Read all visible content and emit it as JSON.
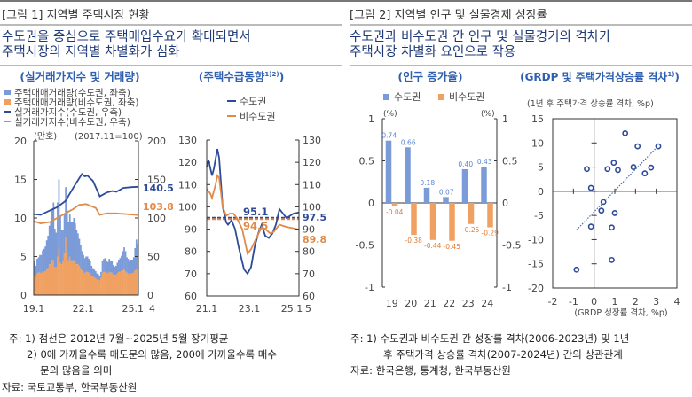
{
  "figure1": {
    "title": "[그림 1] 지역별 주택시장 현황",
    "subtitle_lines": [
      "수도권을 중심으로 주택매입수요가 확대되면서",
      "주택시장의 지역별 차별화가 심화"
    ],
    "notes": [
      "주: 1) 점선은 2012년 7월~2025년 5월 장기평균",
      "2) 0에 가까울수록 매도문의 많음, 200에 가까울수록 매수",
      "문의 많음을 의미"
    ],
    "source": "자료: 국토교통부, 한국부동산원"
  },
  "figure2": {
    "title": "[그림 2] 지역별 인구 및 실물경제 성장률",
    "subtitle_lines": [
      "수도권과 비수도권 간 인구 및 실물경기의 격차가",
      "주택시장 차별화 요인으로 작용"
    ],
    "notes": [
      "주: 1) 수도권과 비수도권 간 성장률 격차(2006-2023년) 및 1년",
      "후 주택가격 상승률 격차(2007-2024년) 간의 상관관계"
    ],
    "source": "자료: 한국은행, 통계청, 한국부동산원"
  },
  "colors": {
    "metro_line": "#2e4a9a",
    "nonmetro_line": "#e08a4a",
    "metro_bar": "#7b9bd8",
    "nonmetro_bar": "#f0a060",
    "subtitle": "#1f3a78",
    "chart_title": "#2f5fb0"
  },
  "chart_data": [
    {
      "type": "bar+line",
      "title": "(실거래가지수 및 거래량)",
      "left_unit": "(만호)",
      "right_unit": "(2017.11=100)",
      "left_ylim": [
        0,
        20
      ],
      "left_ticks": [
        "0",
        "5",
        "10",
        "15",
        "20"
      ],
      "right_ylim": [
        0,
        200
      ],
      "right_ticks": [
        "0",
        "50",
        "100",
        "150",
        "200"
      ],
      "x_range": [
        "2019.1",
        "2025.5"
      ],
      "x_ticks": [
        "19.1",
        "22.1",
        "25.1"
      ],
      "x_tail": "4",
      "legend": [
        "주택매매거래량(수도권, 좌축)",
        "주택매매거래량(비수도권, 좌축)",
        "실거래가지수(수도권, 우축)",
        "실거래가지수(비수도권, 우축)"
      ],
      "bars_stacked": true,
      "bar_series": [
        {
          "name": "주택매매거래량(비수도권, 좌축)",
          "values": [
            2.6,
            2.3,
            2.8,
            2.9,
            2.9,
            2.8,
            3.0,
            3.0,
            3.1,
            3.3,
            3.5,
            4.0,
            4.0,
            4.6,
            4.5,
            3.6,
            3.6,
            5.0,
            6.0,
            4.2,
            4.0,
            4.4,
            5.5,
            7.5,
            5.5,
            4.5,
            5.0,
            4.5,
            4.5,
            4.5,
            4.3,
            4.0,
            4.0,
            3.8,
            3.5,
            3.2,
            3.0,
            2.8,
            3.0,
            3.0,
            2.9,
            2.8,
            2.5,
            2.4,
            2.3,
            2.2,
            2.0,
            2.0,
            1.9,
            2.2,
            2.9,
            3.0,
            3.0,
            2.9,
            2.8,
            3.0,
            2.9,
            2.9,
            2.7,
            2.6,
            2.6,
            2.8,
            3.0,
            3.0,
            3.1,
            3.2,
            3.3,
            3.1,
            2.9,
            2.8,
            2.7,
            2.8,
            2.8,
            2.9,
            3.2,
            3.4,
            3.2
          ]
        },
        {
          "name": "주택매매거래량(수도권, 좌축)",
          "values": [
            1.8,
            1.5,
            1.9,
            2.0,
            2.3,
            2.4,
            2.8,
            3.0,
            3.2,
            3.8,
            4.2,
            5.0,
            5.5,
            6.5,
            7.5,
            5.0,
            4.5,
            7.0,
            9.0,
            6.0,
            4.5,
            4.0,
            5.0,
            6.5,
            5.5,
            5.0,
            5.5,
            5.0,
            5.0,
            5.5,
            5.0,
            4.5,
            4.0,
            3.5,
            3.0,
            2.5,
            2.2,
            2.0,
            2.0,
            2.0,
            1.8,
            1.6,
            1.3,
            1.1,
            1.0,
            0.9,
            0.8,
            0.7,
            0.6,
            0.8,
            1.6,
            1.7,
            1.8,
            1.6,
            1.5,
            1.7,
            1.6,
            1.5,
            1.2,
            1.1,
            1.2,
            1.4,
            1.6,
            1.8,
            2.0,
            2.5,
            2.9,
            2.6,
            2.0,
            1.9,
            1.7,
            1.8,
            1.8,
            2.0,
            2.9,
            3.8,
            3.5
          ]
        }
      ],
      "line_series": [
        {
          "name": "실거래가지수(수도권, 우축)",
          "end_label": "140.5",
          "points": [
            [
              "2019.1",
              105
            ],
            [
              "2019.6",
              104
            ],
            [
              "2020.1",
              110
            ],
            [
              "2020.6",
              114
            ],
            [
              "2020.12",
              122
            ],
            [
              "2021.6",
              140
            ],
            [
              "2021.12",
              157
            ],
            [
              "2022.2",
              154
            ],
            [
              "2022.4",
              155
            ],
            [
              "2022.8",
              148
            ],
            [
              "2023.1",
              128
            ],
            [
              "2023.6",
              133
            ],
            [
              "2023.10",
              135
            ],
            [
              "2024.1",
              134
            ],
            [
              "2024.6",
              139
            ],
            [
              "2024.12",
              140
            ],
            [
              "2025.5",
              140.5
            ]
          ]
        },
        {
          "name": "실거래가지수(비수도권, 우축)",
          "end_label": "103.8",
          "points": [
            [
              "2019.1",
              96
            ],
            [
              "2019.6",
              93
            ],
            [
              "2020.1",
              95
            ],
            [
              "2020.6",
              100
            ],
            [
              "2020.12",
              106
            ],
            [
              "2021.6",
              112
            ],
            [
              "2021.10",
              117
            ],
            [
              "2022.3",
              118
            ],
            [
              "2022.10",
              113
            ],
            [
              "2023.1",
              104
            ],
            [
              "2023.6",
              106
            ],
            [
              "2024.1",
              106
            ],
            [
              "2024.8",
              105
            ],
            [
              "2025.5",
              103.8
            ]
          ]
        }
      ]
    },
    {
      "type": "line",
      "title": "(주택수급동향",
      "title_sup": "1)2)",
      "ylim": [
        60,
        130
      ],
      "y_ticks": [
        "60",
        "70",
        "80",
        "90",
        "100",
        "110",
        "120",
        "130"
      ],
      "x_range": [
        "2021.1",
        "2025.5"
      ],
      "x_ticks": [
        "21.1",
        "23.1",
        "25.1"
      ],
      "x_tail": "5",
      "legend": [
        "수도권",
        "비수도권"
      ],
      "series": [
        {
          "name": "수도권",
          "end_label": "97.5",
          "average": 95.1,
          "average_label": "95.1",
          "points": [
            [
              "2021.1",
              118
            ],
            [
              "2021.2",
              121
            ],
            [
              "2021.4",
              114
            ],
            [
              "2021.5",
              117
            ],
            [
              "2021.7",
              126
            ],
            [
              "2021.8",
              122
            ],
            [
              "2021.10",
              100
            ],
            [
              "2021.12",
              93
            ],
            [
              "2022.1",
              92
            ],
            [
              "2022.3",
              94
            ],
            [
              "2022.5",
              90
            ],
            [
              "2022.7",
              82
            ],
            [
              "2022.10",
              72
            ],
            [
              "2022.12",
              70
            ],
            [
              "2023.2",
              73
            ],
            [
              "2023.4",
              82
            ],
            [
              "2023.6",
              88
            ],
            [
              "2023.8",
              92
            ],
            [
              "2023.10",
              87
            ],
            [
              "2023.12",
              86
            ],
            [
              "2024.2",
              88
            ],
            [
              "2024.4",
              92
            ],
            [
              "2024.6",
              99
            ],
            [
              "2024.8",
              97
            ],
            [
              "2024.10",
              95
            ],
            [
              "2024.12",
              96
            ],
            [
              "2025.2",
              97
            ],
            [
              "2025.5",
              97.5
            ]
          ]
        },
        {
          "name": "비수도권",
          "end_label": "89.8",
          "average": 94.5,
          "average_label": "94.5",
          "points": [
            [
              "2021.1",
              108
            ],
            [
              "2021.3",
              106
            ],
            [
              "2021.4",
              104
            ],
            [
              "2021.6",
              110
            ],
            [
              "2021.7",
              114
            ],
            [
              "2021.8",
              113
            ],
            [
              "2021.10",
              100
            ],
            [
              "2021.12",
              96
            ],
            [
              "2022.2",
              97
            ],
            [
              "2022.4",
              97
            ],
            [
              "2022.6",
              95
            ],
            [
              "2022.9",
              90
            ],
            [
              "2022.12",
              79
            ],
            [
              "2023.2",
              81
            ],
            [
              "2023.5",
              86
            ],
            [
              "2023.8",
              91
            ],
            [
              "2023.10",
              90
            ],
            [
              "2024.1",
              88
            ],
            [
              "2024.3",
              89
            ],
            [
              "2024.6",
              92
            ],
            [
              "2024.10",
              91
            ],
            [
              "2025.1",
              90.5
            ],
            [
              "2025.5",
              89.8
            ]
          ]
        }
      ]
    },
    {
      "type": "bar",
      "title": "(인구 증가율)",
      "unit_left": "(%)",
      "unit_right": "(%)",
      "ylim": [
        -1,
        1
      ],
      "y_ticks": [
        "-1",
        "-0.5",
        "0",
        "0.5",
        "1"
      ],
      "categories": [
        "19",
        "20",
        "21",
        "22",
        "23",
        "24"
      ],
      "series": [
        {
          "name": "수도권",
          "values": [
            0.74,
            0.66,
            0.18,
            0.07,
            0.4,
            0.43
          ],
          "labels": [
            "0.74",
            "0.66",
            "0.18",
            "0.07",
            "0.40",
            "0.43"
          ]
        },
        {
          "name": "비수도권",
          "values": [
            -0.04,
            -0.38,
            -0.44,
            -0.45,
            -0.25,
            -0.29
          ],
          "labels": [
            "-0.04",
            "-0.38",
            "-0.44",
            "-0.45",
            "-0.25",
            "-0.29"
          ]
        }
      ]
    },
    {
      "type": "scatter",
      "title": "(GRDP 및 주택가격상승률 격차",
      "title_sup": "1)",
      "ylabel": "(1년 후 주택가격 상승률 격차, %p)",
      "xlabel": "(GRDP 성장률 격차, %p)",
      "xlim": [
        -2,
        4
      ],
      "x_ticks": [
        "-2",
        "-1",
        "0",
        "1",
        "2",
        "3",
        "4"
      ],
      "ylim": [
        -20,
        15
      ],
      "y_ticks": [
        "-20",
        "-15",
        "-10",
        "-5",
        "0",
        "5",
        "10",
        "15"
      ],
      "points": [
        [
          1.5,
          12
        ],
        [
          2.1,
          9.3
        ],
        [
          3.1,
          9.3
        ],
        [
          -0.35,
          4.6
        ],
        [
          0.65,
          4.6
        ],
        [
          0.95,
          5.9
        ],
        [
          1.15,
          4.4
        ],
        [
          1.9,
          5
        ],
        [
          2.75,
          4.9
        ],
        [
          2.45,
          3.7
        ],
        [
          -0.15,
          0.7
        ],
        [
          0.45,
          -2.2
        ],
        [
          0.35,
          -4
        ],
        [
          1.0,
          -4.5
        ],
        [
          -0.15,
          -7.3
        ],
        [
          0.85,
          -7.5
        ],
        [
          0.85,
          -14.2
        ],
        [
          -0.85,
          -16.2
        ]
      ],
      "trendline": [
        [
          -0.85,
          -8
        ],
        [
          3.1,
          9.4
        ]
      ]
    }
  ]
}
